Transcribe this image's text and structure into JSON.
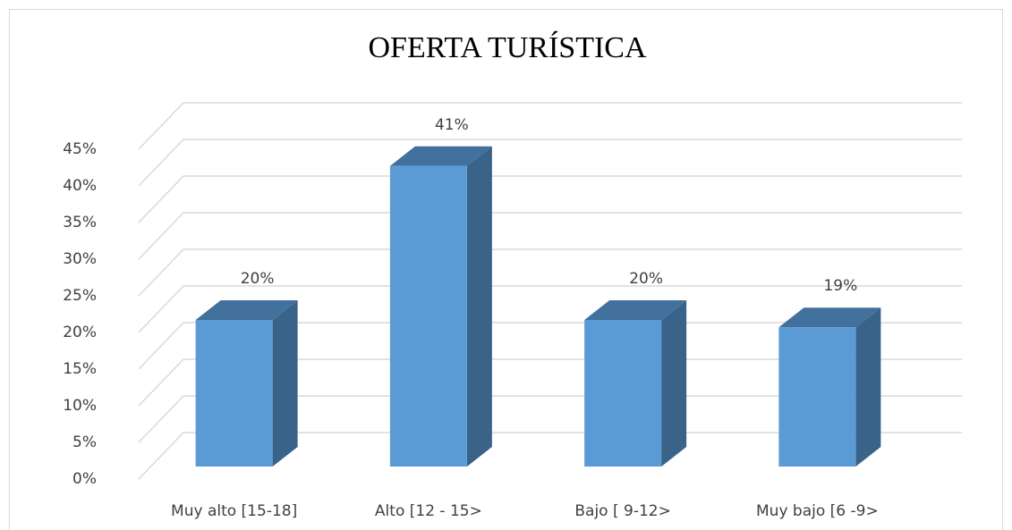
{
  "chart_data": {
    "type": "bar3d",
    "title": "OFERTA TURÍSTICA",
    "categories": [
      "Muy alto [15-18]",
      "Alto [12 - 15>",
      "Bajo [ 9-12>",
      "Muy bajo [6 -9>"
    ],
    "values": [
      20,
      41,
      20,
      19
    ],
    "value_labels": [
      "20%",
      "41%",
      "20%",
      "19%"
    ],
    "color": "#5b9bd5",
    "ylim": [
      0,
      45
    ],
    "yticks": [
      {
        "value": 0,
        "label": "0%"
      },
      {
        "value": 5,
        "label": "5%"
      },
      {
        "value": 10,
        "label": "10%"
      },
      {
        "value": 15,
        "label": "15%"
      },
      {
        "value": 20,
        "label": "20%"
      },
      {
        "value": 25,
        "label": "25%"
      },
      {
        "value": 30,
        "label": "30%"
      },
      {
        "value": 35,
        "label": "35%"
      },
      {
        "value": 40,
        "label": "40%"
      },
      {
        "value": 45,
        "label": "45%"
      }
    ],
    "grid": true
  }
}
